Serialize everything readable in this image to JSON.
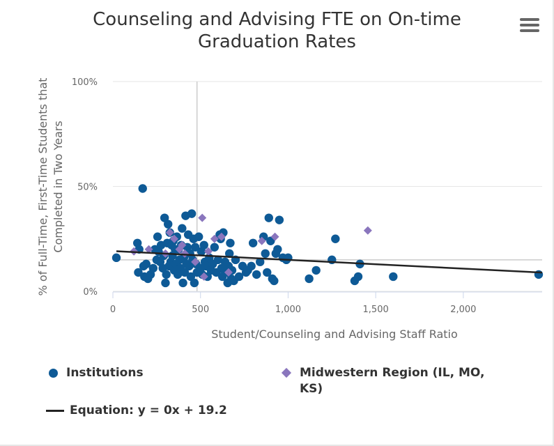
{
  "title": "Counseling and Advising FTE on On-time\nGraduation Rates",
  "menu_icon": "hamburger-menu-icon",
  "colors": {
    "institutions": "#0e5a96",
    "region": "#8a76bd",
    "trendline": "#222222",
    "gridline": "#e6e6e6",
    "axis": "#ccd6eb",
    "crosshair": "#cccccc"
  },
  "legend": {
    "institutions": "Institutions",
    "region": "Midwestern Region (IL, MO, KS)",
    "equation": "Equation: y = 0x + 19.2"
  },
  "chart_data": {
    "type": "scatter",
    "title": "Counseling and Advising FTE on On-time Graduation Rates",
    "xlabel": "Student/Counseling and Advising Staff Ratio",
    "ylabel": "% of Full-Time, First-Time Students that Completed in Two Years",
    "xlim": [
      0,
      2450
    ],
    "ylim": [
      0,
      100
    ],
    "x_ticks": [
      0,
      500,
      1000,
      1500,
      2000
    ],
    "x_tick_labels": [
      "0",
      "500",
      "1,000",
      "1,500",
      "2,000"
    ],
    "y_ticks": [
      0,
      50,
      100
    ],
    "y_tick_labels": [
      "0%",
      "50%",
      "100%"
    ],
    "grid": "horizontal",
    "legend_position": "bottom",
    "crosshair": {
      "x": 480,
      "y": 15
    },
    "series": [
      {
        "name": "Institutions",
        "marker": "circle",
        "points": [
          [
            170,
            49
          ],
          [
            20,
            16
          ],
          [
            140,
            23
          ],
          [
            150,
            20
          ],
          [
            145,
            9
          ],
          [
            175,
            12
          ],
          [
            190,
            13
          ],
          [
            200,
            6
          ],
          [
            180,
            7
          ],
          [
            215,
            8
          ],
          [
            230,
            11
          ],
          [
            240,
            20
          ],
          [
            250,
            15
          ],
          [
            255,
            26
          ],
          [
            260,
            19
          ],
          [
            270,
            14
          ],
          [
            275,
            22
          ],
          [
            285,
            11
          ],
          [
            290,
            17
          ],
          [
            295,
            35
          ],
          [
            300,
            4
          ],
          [
            305,
            8
          ],
          [
            310,
            23
          ],
          [
            315,
            32
          ],
          [
            320,
            12
          ],
          [
            325,
            28
          ],
          [
            330,
            14
          ],
          [
            335,
            22
          ],
          [
            340,
            17
          ],
          [
            345,
            24
          ],
          [
            350,
            10
          ],
          [
            355,
            20
          ],
          [
            360,
            13
          ],
          [
            365,
            26
          ],
          [
            370,
            8
          ],
          [
            375,
            20
          ],
          [
            380,
            15
          ],
          [
            385,
            11
          ],
          [
            390,
            22
          ],
          [
            395,
            30
          ],
          [
            400,
            4
          ],
          [
            405,
            16
          ],
          [
            410,
            9
          ],
          [
            415,
            36
          ],
          [
            420,
            13
          ],
          [
            425,
            21
          ],
          [
            430,
            27
          ],
          [
            435,
            12
          ],
          [
            440,
            18
          ],
          [
            445,
            7
          ],
          [
            450,
            37
          ],
          [
            455,
            15
          ],
          [
            460,
            25
          ],
          [
            465,
            4
          ],
          [
            470,
            21
          ],
          [
            475,
            13
          ],
          [
            480,
            9
          ],
          [
            490,
            26
          ],
          [
            500,
            11
          ],
          [
            505,
            19
          ],
          [
            510,
            8
          ],
          [
            520,
            22
          ],
          [
            525,
            14
          ],
          [
            530,
            12
          ],
          [
            540,
            7
          ],
          [
            550,
            16
          ],
          [
            560,
            10
          ],
          [
            570,
            13
          ],
          [
            580,
            21
          ],
          [
            590,
            9
          ],
          [
            600,
            15
          ],
          [
            610,
            27
          ],
          [
            615,
            25
          ],
          [
            620,
            11
          ],
          [
            625,
            7
          ],
          [
            630,
            28
          ],
          [
            640,
            14
          ],
          [
            650,
            9
          ],
          [
            655,
            4
          ],
          [
            660,
            12
          ],
          [
            665,
            18
          ],
          [
            670,
            23
          ],
          [
            675,
            6
          ],
          [
            680,
            10
          ],
          [
            690,
            5
          ],
          [
            700,
            15
          ],
          [
            720,
            7
          ],
          [
            740,
            12
          ],
          [
            760,
            9
          ],
          [
            770,
            10
          ],
          [
            790,
            12
          ],
          [
            800,
            23
          ],
          [
            820,
            8
          ],
          [
            840,
            14
          ],
          [
            860,
            26
          ],
          [
            870,
            18
          ],
          [
            880,
            9
          ],
          [
            890,
            35
          ],
          [
            900,
            24
          ],
          [
            910,
            6
          ],
          [
            920,
            5
          ],
          [
            930,
            18
          ],
          [
            940,
            20
          ],
          [
            950,
            34
          ],
          [
            970,
            16
          ],
          [
            990,
            15
          ],
          [
            1000,
            16
          ],
          [
            1120,
            6
          ],
          [
            1160,
            10
          ],
          [
            1250,
            15
          ],
          [
            1270,
            25
          ],
          [
            1380,
            5
          ],
          [
            1400,
            7
          ],
          [
            1410,
            13
          ],
          [
            1600,
            7
          ],
          [
            2430,
            8
          ]
        ]
      },
      {
        "name": "Midwestern Region (IL, MO, KS)",
        "marker": "diamond",
        "points": [
          [
            120,
            19
          ],
          [
            205,
            20
          ],
          [
            300,
            18
          ],
          [
            325,
            28
          ],
          [
            350,
            25
          ],
          [
            380,
            20
          ],
          [
            395,
            22
          ],
          [
            410,
            18
          ],
          [
            470,
            14
          ],
          [
            510,
            35
          ],
          [
            545,
            19
          ],
          [
            580,
            25
          ],
          [
            620,
            26
          ],
          [
            660,
            9
          ],
          [
            850,
            24
          ],
          [
            925,
            26
          ],
          [
            1455,
            29
          ],
          [
            520,
            7
          ]
        ]
      },
      {
        "name": "Equation: y = 0x + 19.2",
        "type": "line",
        "equation": {
          "slope": -0.0042,
          "intercept": 19.2
        },
        "x_range": [
          20,
          2450
        ]
      }
    ]
  }
}
